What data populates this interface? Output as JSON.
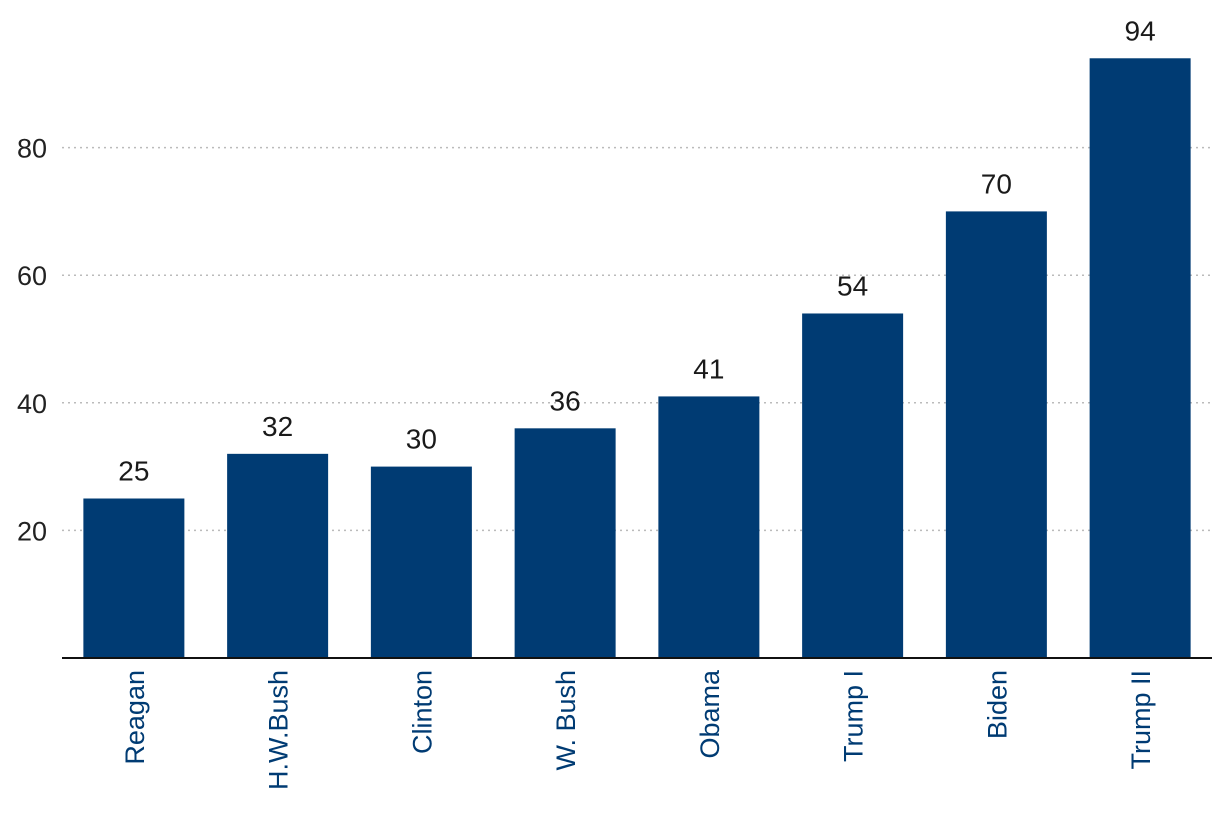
{
  "chart_data": {
    "type": "bar",
    "categories": [
      "Reagan",
      "H.W.Bush",
      "Clinton",
      "W. Bush",
      "Obama",
      "Trump I",
      "Biden",
      "Trump II"
    ],
    "values": [
      25,
      32,
      30,
      36,
      41,
      54,
      70,
      94
    ],
    "title": "",
    "xlabel": "",
    "ylabel": "",
    "ylim": [
      0,
      100
    ],
    "yticks": [
      20,
      40,
      60,
      80
    ],
    "grid": "horizontal-dotted",
    "data_labels": true,
    "colors": {
      "bar": "#003b73",
      "category_label": "#003b73",
      "grid": "#bbbbbb",
      "axis": "#111111"
    }
  }
}
